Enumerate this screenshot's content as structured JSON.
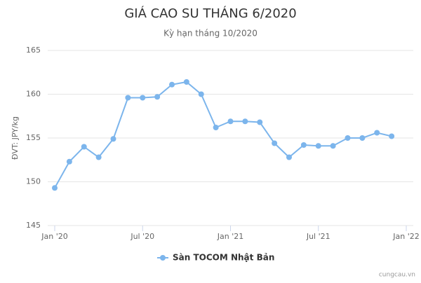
{
  "chart_data": {
    "type": "line",
    "title": "GIÁ CAO SU THÁNG 6/2020",
    "subtitle": "Kỳ hạn tháng 10/2020",
    "y_label": "ĐVT: JPY/kg",
    "credit": "cungcau.vn",
    "x": [
      "2020-01",
      "2020-02",
      "2020-03",
      "2020-04",
      "2020-05",
      "2020-06",
      "2020-07",
      "2020-08",
      "2020-09",
      "2020-10",
      "2020-11",
      "2020-12",
      "2021-01",
      "2021-02",
      "2021-03",
      "2021-04",
      "2021-05",
      "2021-06",
      "2021-07",
      "2021-08",
      "2021-09",
      "2021-10",
      "2021-11",
      "2021-12"
    ],
    "series": [
      {
        "name": "Sàn TOCOM Nhật Bản",
        "color": "#7cb5ec",
        "values": [
          149.3,
          152.3,
          154.0,
          152.8,
          154.9,
          159.6,
          159.6,
          159.7,
          161.1,
          161.4,
          160.0,
          156.2,
          156.9,
          156.9,
          156.8,
          154.4,
          152.8,
          154.2,
          154.1,
          154.1,
          155.0,
          155.0,
          155.6,
          155.2
        ]
      }
    ],
    "xlim": [
      "2020-01",
      "2022-01"
    ],
    "xticks": [
      {
        "value": "2020-01",
        "label": "Jan '20"
      },
      {
        "value": "2020-07",
        "label": "Jul '20"
      },
      {
        "value": "2021-01",
        "label": "Jan '21"
      },
      {
        "value": "2021-07",
        "label": "Jul '21"
      },
      {
        "value": "2022-01",
        "label": "Jan '22"
      }
    ],
    "ylim": [
      145,
      165
    ],
    "yticks": [
      145,
      150,
      155,
      160,
      165
    ],
    "grid": true
  }
}
